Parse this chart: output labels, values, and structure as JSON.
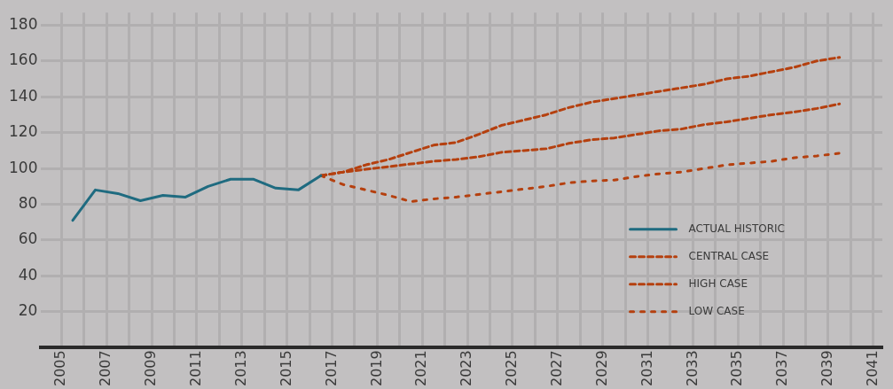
{
  "chart_data": {
    "type": "line",
    "xlim": [
      2004.1,
      2041.4
    ],
    "xticks": [
      2005,
      {
        "value": 2006,
        "label": null
      },
      2007,
      {
        "value": 2008,
        "label": null
      },
      2009,
      {
        "value": 2010,
        "label": null
      },
      2011,
      {
        "value": 2012,
        "label": null
      },
      2013,
      {
        "value": 2014,
        "label": null
      },
      2015,
      {
        "value": 2016,
        "label": null
      },
      2017,
      {
        "value": 2018,
        "label": null
      },
      2019,
      {
        "value": 2020,
        "label": null
      },
      2021,
      {
        "value": 2022,
        "label": null
      },
      2023,
      {
        "value": 2024,
        "label": null
      },
      2025,
      {
        "value": 2026,
        "label": null
      },
      2027,
      {
        "value": 2028,
        "label": null
      },
      2029,
      {
        "value": 2030,
        "label": null
      },
      2031,
      {
        "value": 2032,
        "label": null
      },
      2033,
      {
        "value": 2034,
        "label": null
      },
      2035,
      {
        "value": 2036,
        "label": null
      },
      2037,
      {
        "value": 2038,
        "label": null
      },
      2039,
      {
        "value": 2040,
        "label": null
      },
      2041
    ],
    "ylim": [
      0,
      187
    ],
    "yticks": [
      20,
      40,
      60,
      80,
      100,
      120,
      140,
      160,
      180
    ],
    "grid": true,
    "legend": "bottom right",
    "series": [
      {
        "name": "ACTUAL HISTORIC",
        "color": "#1f6b80",
        "line_style": "solid",
        "x": [
          2005.5,
          2006.5,
          2007.5,
          2008.5,
          2009.5,
          2010.5,
          2011.5,
          2012.5,
          2013.5,
          2014.5,
          2015.5,
          2016.5
        ],
        "values": [
          71,
          88,
          86,
          82,
          85,
          84,
          90,
          94,
          94,
          89,
          88,
          96
        ]
      },
      {
        "name": "CENTRAL CASE",
        "color": "#b5400f",
        "line_style": "dashed",
        "x": [
          2016.5,
          2017.5,
          2018.5,
          2019.5,
          2020.5,
          2021.5,
          2022.5,
          2023.5,
          2024.5,
          2025.5,
          2026.5,
          2027.5,
          2028.5,
          2029.5,
          2030.5,
          2031.5,
          2032.5,
          2033.5,
          2034.5,
          2035.5,
          2036.5,
          2037.5,
          2038.5,
          2039.5
        ],
        "values": [
          96,
          98,
          99.5,
          101,
          102.5,
          104,
          105,
          106.5,
          109,
          110,
          111,
          114,
          116,
          117,
          119,
          121,
          122,
          124.5,
          126,
          128,
          130,
          131.5,
          133.5,
          136
        ]
      },
      {
        "name": "HIGH CASE",
        "color": "#b5400f",
        "line_style": "dashed",
        "x": [
          2016.5,
          2017.5,
          2018.5,
          2019.5,
          2020.5,
          2021.5,
          2022.5,
          2023.5,
          2024.5,
          2025.5,
          2026.5,
          2027.5,
          2028.5,
          2029.5,
          2030.5,
          2031.5,
          2032.5,
          2033.5,
          2034.5,
          2035.5,
          2036.5,
          2037.5,
          2038.5,
          2039.5
        ],
        "values": [
          96,
          98,
          102,
          105,
          109,
          113,
          114.5,
          119,
          124,
          127,
          130,
          134,
          137,
          139,
          141,
          143,
          145,
          147,
          150,
          151.5,
          154,
          156.5,
          160,
          162
        ]
      },
      {
        "name": "LOW CASE",
        "color": "#b5400f",
        "line_style": "dotted",
        "x": [
          2016.5,
          2017.5,
          2018.5,
          2019.5,
          2020.5,
          2021.5,
          2022.5,
          2023.5,
          2024.5,
          2025.5,
          2026.5,
          2027.5,
          2028.5,
          2029.5,
          2030.5,
          2031.5,
          2032.5,
          2033.5,
          2034.5,
          2035.5,
          2036.5,
          2037.5,
          2038.5,
          2039.5
        ],
        "values": [
          96,
          91,
          88,
          85,
          81.5,
          83,
          84,
          85.5,
          87,
          88.5,
          90,
          92,
          93,
          93.5,
          95.5,
          97,
          98,
          100,
          102,
          103,
          104,
          106,
          107,
          108.5
        ]
      }
    ]
  }
}
